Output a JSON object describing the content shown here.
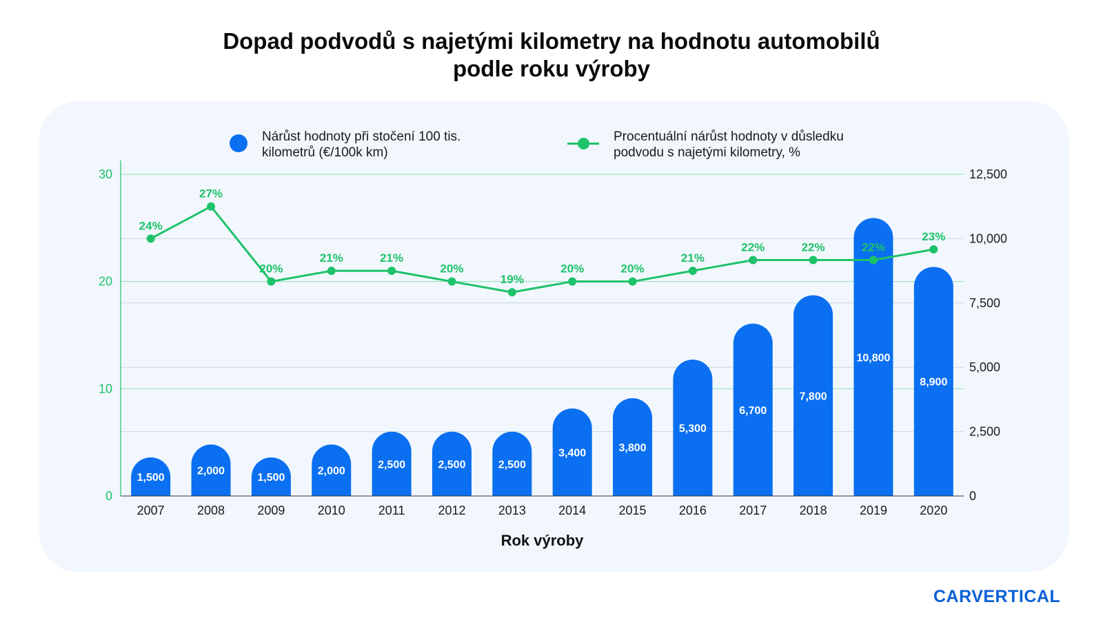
{
  "title_lines": [
    "Dopad podvodů s najetými kilometry na hodnotu automobilů",
    "podle roku výroby"
  ],
  "legend": {
    "bar_label_line1": "Nárůst hodnoty při stočení 100 tis.",
    "bar_label_line2": "kilometrů (€/100k km)",
    "line_label_line1": "Procentuální nárůst hodnoty v důsledku",
    "line_label_line2": "podvodu s najetými kilometry, %"
  },
  "brand": "CARVERTICAL",
  "colors": {
    "bar": "#0a6ff0",
    "line": "#1ec26a",
    "panel": "#f1f7fd",
    "grid": "#c9d6e0",
    "brand": "#0b5fd6"
  },
  "chart_data": {
    "type": "bar+line",
    "xlabel": "Rok výroby",
    "categories": [
      "2007",
      "2008",
      "2009",
      "2010",
      "2011",
      "2012",
      "2013",
      "2014",
      "2015",
      "2016",
      "2017",
      "2018",
      "2019",
      "2020"
    ],
    "series": [
      {
        "name": "Nárůst hodnoty při stočení 100 tis. kilometrů (€/100k km)",
        "type": "bar",
        "axis": "right",
        "values": [
          1500,
          2000,
          1500,
          2000,
          2500,
          2500,
          2500,
          3400,
          3800,
          5300,
          6700,
          7800,
          10800,
          8900
        ],
        "labels": [
          "1,500",
          "2,000",
          "1,500",
          "2,000",
          "2,500",
          "2,500",
          "2,500",
          "3,400",
          "3,800",
          "5,300",
          "6,700",
          "7,800",
          "10,800",
          "8,900"
        ]
      },
      {
        "name": "Procentuální nárůst hodnoty v důsledku podvodu s najetými kilometry, %",
        "type": "line",
        "axis": "left",
        "values": [
          24,
          27,
          20,
          21,
          21,
          20,
          19,
          20,
          20,
          21,
          22,
          22,
          22,
          23
        ],
        "labels": [
          "24%",
          "27%",
          "20%",
          "21%",
          "21%",
          "20%",
          "19%",
          "20%",
          "20%",
          "21%",
          "22%",
          "22%",
          "22%",
          "23%"
        ]
      }
    ],
    "left_axis": {
      "ylim": [
        0,
        30
      ],
      "ticks": [
        0,
        10,
        20,
        30
      ],
      "tick_labels": [
        "0",
        "10",
        "20",
        "30"
      ]
    },
    "right_axis": {
      "ylim": [
        0,
        12500
      ],
      "ticks": [
        0,
        2500,
        5000,
        7500,
        10000,
        12500
      ],
      "tick_labels": [
        "0",
        "2,500",
        "5,000",
        "7,500",
        "10,000",
        "12,500"
      ]
    },
    "grid": true,
    "legend_position": "top"
  }
}
